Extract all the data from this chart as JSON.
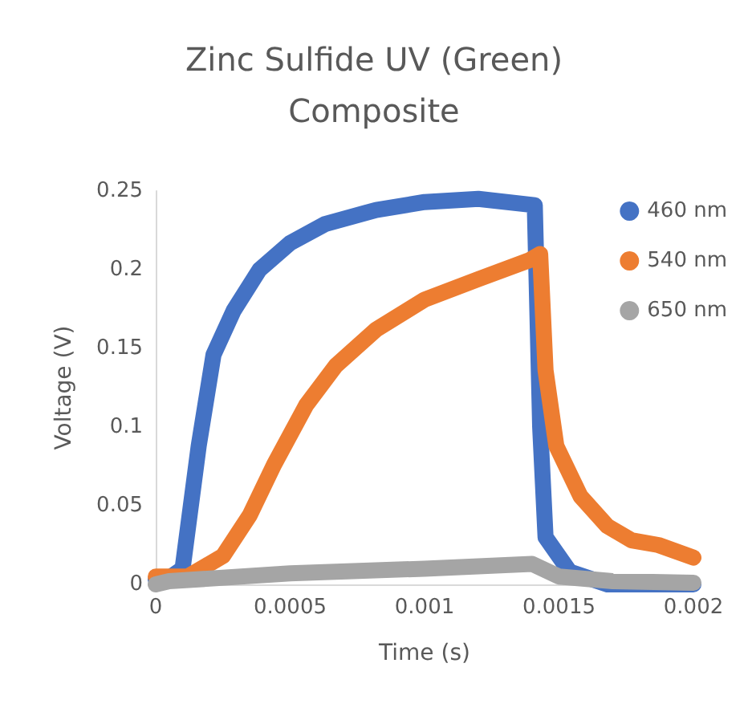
{
  "chart_data": {
    "type": "line",
    "title": "Zinc Sulfide UV (Green)\nComposite",
    "xlabel": "Time (s)",
    "ylabel": "Voltage (V)",
    "xlim": [
      0,
      0.002
    ],
    "xticks": [
      0,
      0.0005,
      0.001,
      0.0015,
      0.002
    ],
    "ylim": [
      0,
      0.25
    ],
    "yticks": [
      0,
      0.05,
      0.1,
      0.15,
      0.2,
      0.25
    ],
    "grid": false,
    "legend": "top right",
    "series": [
      {
        "name": "460 nm",
        "color": "#4472c4",
        "x": [
          0,
          5e-05,
          0.0001,
          0.00016,
          0.000215,
          0.00029,
          0.000386,
          0.0005,
          0.00063,
          0.00082,
          0.001,
          0.0012,
          0.00141,
          0.00143,
          0.00145,
          0.00154,
          0.00168,
          0.002
        ],
        "values": [
          0.003,
          0.004,
          0.01,
          0.088,
          0.146,
          0.174,
          0.2,
          0.217,
          0.229,
          0.238,
          0.243,
          0.245,
          0.241,
          0.1,
          0.03,
          0.008,
          0,
          0
        ]
      },
      {
        "name": "540 nm",
        "color": "#ed7d31",
        "x": [
          0,
          0.00012,
          0.00025,
          0.00035,
          0.00044,
          0.00056,
          0.00067,
          0.00082,
          0.001,
          0.0012,
          0.00139,
          0.00143,
          0.00145,
          0.00149,
          0.00158,
          0.00168,
          0.00177,
          0.00187,
          0.002
        ],
        "values": [
          0.005,
          0.005,
          0.018,
          0.044,
          0.076,
          0.114,
          0.139,
          0.162,
          0.181,
          0.194,
          0.206,
          0.21,
          0.136,
          0.088,
          0.056,
          0.037,
          0.028,
          0.025,
          0.017
        ]
      },
      {
        "name": "650 nm",
        "color": "#a5a5a5",
        "x": [
          0,
          5e-05,
          0.0005,
          0.001,
          0.0014,
          0.0015,
          0.0017,
          0.002
        ],
        "values": [
          0,
          0.002,
          0.007,
          0.01,
          0.013,
          0.005,
          0.002,
          0.001
        ]
      }
    ]
  }
}
